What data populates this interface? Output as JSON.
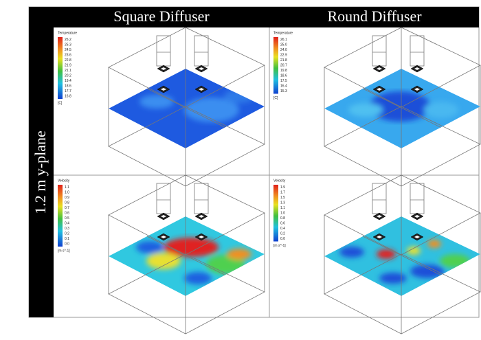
{
  "header": {
    "columns": [
      "Square Diffuser",
      "Round Diffuser"
    ]
  },
  "row_label": "1.2 m y-plane",
  "panels": [
    {
      "legend": {
        "title": "Temperature",
        "ticks": [
          "26.2",
          "25.3",
          "24.5",
          "23.6",
          "22.8",
          "21.9",
          "21.1",
          "20.2",
          "19.4",
          "18.6",
          "17.7",
          "16.8"
        ],
        "unit": "[C]"
      }
    },
    {
      "legend": {
        "title": "Temperature",
        "ticks": [
          "26.1",
          "25.0",
          "24.0",
          "22.9",
          "21.8",
          "20.7",
          "19.8",
          "18.6",
          "17.5",
          "16.4",
          "15.3"
        ],
        "unit": "[C]"
      }
    },
    {
      "legend": {
        "title": "Velocity",
        "ticks": [
          "1.1",
          "1.0",
          "0.9",
          "0.8",
          "0.7",
          "0.6",
          "0.5",
          "0.4",
          "0.3",
          "0.2",
          "0.1",
          "0.0"
        ],
        "unit": "[m s^-1]"
      }
    },
    {
      "legend": {
        "title": "Velocity",
        "ticks": [
          "1.9",
          "1.7",
          "1.5",
          "1.3",
          "1.1",
          "1.0",
          "0.8",
          "0.6",
          "0.4",
          "0.2",
          "0.0"
        ],
        "unit": "[m s^-1]"
      }
    }
  ]
}
